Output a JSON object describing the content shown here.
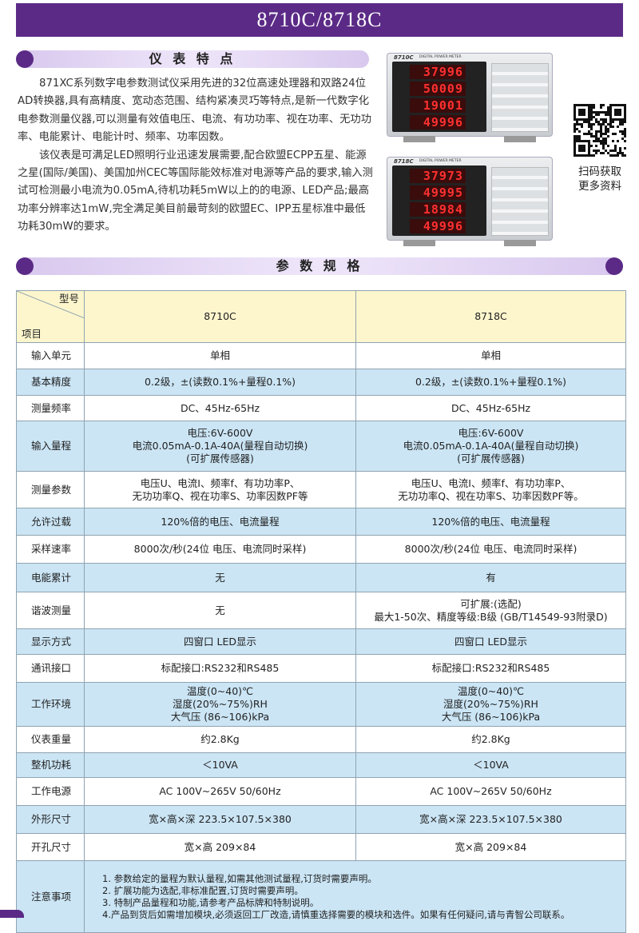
{
  "header": {
    "title": "8710C/8718C"
  },
  "features": {
    "title": "仪 表 特 点",
    "paragraphs": [
      "871XC系列数字电参数测试仪采用先进的32位高速处理器和双路24位AD转换器,具有高精度、宽动态范围、结构紧凑灵巧等特点,是新一代数字化电参数测量仪器,可以测量有效值电压、电流、有功功率、视在功率、无功功率、电能累计、电能计时、频率、功率因数。",
      "该仪表是可满足LED照明行业迅速发展需要,配合欧盟ECPP五星、能源之星(国际/美国)、美国加州CEC等国际能效标准对电源等产品的要求,输入测试可检测最小电流为0.05mA,待机功耗5mW以上的的电源、LED产品;最高功率分辨率达1mW,完全满足美目前最苛刻的欧盟EC、IPP五星标准中最低功耗30mW的要求。"
    ]
  },
  "meters": [
    {
      "brand": "8710C",
      "model": "DIGITAL POWER METER",
      "readings": [
        "37996",
        "50009",
        "19001",
        "49996"
      ]
    },
    {
      "brand": "8718C",
      "model": "DIGITAL POWER METER",
      "readings": [
        "37973",
        "49995",
        "18984",
        "49996"
      ]
    }
  ],
  "qr": {
    "caption": "扫码获取\n更多资料"
  },
  "specs": {
    "title": "参 数 规 格"
  },
  "table": {
    "corner_top": "型号",
    "corner_bottom": "项目",
    "columns": [
      "8710C",
      "8718C"
    ],
    "rows": [
      [
        "输入单元",
        "单相",
        "单相"
      ],
      [
        "基本精度",
        "0.2级，±(读数0.1%+量程0.1%)",
        "0.2级，±(读数0.1%+量程0.1%)"
      ],
      [
        "测量频率",
        "DC、45Hz-65Hz",
        "DC、45Hz-65Hz"
      ],
      [
        "输入量程",
        "电压:6V-600V\n电流0.05mA-0.1A-40A(量程自动切换)\n(可扩展传感器)",
        "电压:6V-600V\n电流0.05mA-0.1A-40A(量程自动切换)\n(可扩展传感器)"
      ],
      [
        "测量参数",
        "电压U、电流I、频率f、有功功率P、\n无功功率Q、视在功率S、功率因数PF等",
        "电压U、电流I、频率f、有功功率P、\n无功功率Q、视在功率S、功率因数PF等。"
      ],
      [
        "允许过载",
        "120%倍的电压、电流量程",
        "120%倍的电压、电流量程"
      ],
      [
        "采样速率",
        "8000次/秒(24位 电压、电流同时采样)",
        "8000次/秒(24位 电压、电流同时采样)"
      ],
      [
        "电能累计",
        "无",
        "有"
      ],
      [
        "谐波测量",
        "无",
        "可扩展:(选配)\n最大1-50次、精度等级:B级 (GB/T14549-93附录D)"
      ],
      [
        "显示方式",
        "四窗口 LED显示",
        "四窗口 LED显示"
      ],
      [
        "通讯接口",
        "标配接口:RS232和RS485",
        "标配接口:RS232和RS485"
      ],
      [
        "工作环境",
        "温度(0~40)℃\n湿度(20%~75%)RH\n大气压 (86~106)kPa",
        "温度(0~40)℃\n湿度(20%~75%)RH\n大气压 (86~106)kPa"
      ],
      [
        "仪表重量",
        "约2.8Kg",
        "约2.8Kg"
      ],
      [
        "整机功耗",
        "＜10VA",
        "＜10VA"
      ],
      [
        "工作电源",
        "AC  100V~265V  50/60Hz",
        "AC  100V~265V  50/60Hz"
      ],
      [
        "外形尺寸",
        "宽×高×深  223.5×107.5×380",
        "宽×高×深  223.5×107.5×380"
      ],
      [
        "开孔尺寸",
        "宽×高  209×84",
        "宽×高  209×84"
      ]
    ],
    "notes": {
      "label": "注意事项",
      "lines": [
        "1. 参数给定的量程为默认量程,如需其他测试量程,订货时需要声明。",
        "2. 扩展功能为选配,非标准配置,订货时需要声明。",
        "3. 特制产品量程和功能,请参考产品标牌和特制说明。",
        "4.产品到货后如需增加模块,必须返回工厂改造,请慎重选择需要的模块和选件。如果有任何疑问,请与青智公司联系。"
      ]
    }
  }
}
